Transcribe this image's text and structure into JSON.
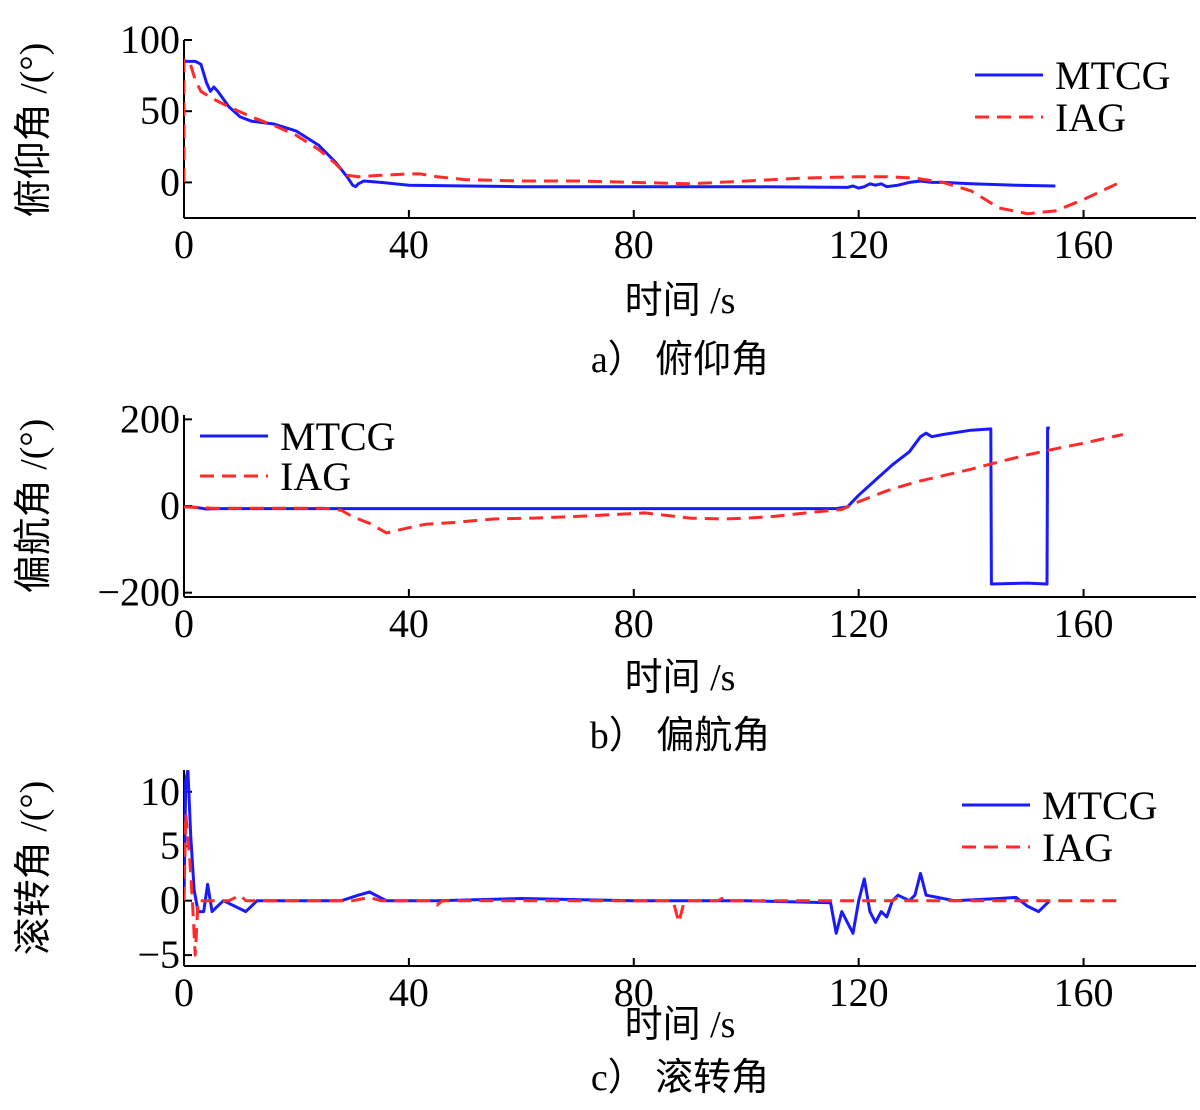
{
  "chart_data": [
    {
      "id": "a",
      "type": "line",
      "caption": "a） 俯仰角",
      "xlabel": "时间 /s",
      "ylabel": "俯仰角 /(°)",
      "xlim": [
        0,
        180
      ],
      "ylim": [
        -25,
        100
      ],
      "xticks": [
        0,
        40,
        80,
        120,
        160
      ],
      "yticks": [
        0,
        50,
        100
      ],
      "legend_position": "top-right",
      "series": [
        {
          "name": "MTCG",
          "color": "#1a1aff",
          "style": "solid",
          "points": [
            [
              0,
              85
            ],
            [
              2,
              85
            ],
            [
              3,
              83
            ],
            [
              4,
              70
            ],
            [
              4.7,
              64
            ],
            [
              5.3,
              67
            ],
            [
              6,
              64
            ],
            [
              8,
              53
            ],
            [
              10,
              46
            ],
            [
              12,
              43
            ],
            [
              16,
              41
            ],
            [
              20,
              36
            ],
            [
              24,
              26
            ],
            [
              27,
              14
            ],
            [
              29,
              4
            ],
            [
              30,
              -2
            ],
            [
              30.5,
              -3
            ],
            [
              31,
              -1
            ],
            [
              32,
              1
            ],
            [
              35,
              0
            ],
            [
              40,
              -2
            ],
            [
              60,
              -3
            ],
            [
              90,
              -3
            ],
            [
              100,
              -3
            ],
            [
              118,
              -3.5
            ],
            [
              119,
              -2.5
            ],
            [
              120,
              -4
            ],
            [
              121,
              -3
            ],
            [
              122,
              -1
            ],
            [
              123,
              -2
            ],
            [
              124,
              -1
            ],
            [
              125,
              -3
            ],
            [
              127,
              -2
            ],
            [
              129,
              0
            ],
            [
              131,
              1
            ],
            [
              133,
              0
            ],
            [
              135,
              0
            ],
            [
              140,
              -1
            ],
            [
              148,
              -2
            ],
            [
              155,
              -2.5
            ]
          ]
        },
        {
          "name": "IAG",
          "color": "#ff2a2a",
          "style": "dashed",
          "points": [
            [
              0,
              0
            ],
            [
              0,
              86
            ],
            [
              1,
              85
            ],
            [
              2,
              72
            ],
            [
              3,
              64
            ],
            [
              5,
              59
            ],
            [
              8,
              53
            ],
            [
              12,
              46
            ],
            [
              16,
              40
            ],
            [
              20,
              33
            ],
            [
              24,
              23
            ],
            [
              27,
              13
            ],
            [
              29,
              5
            ],
            [
              31,
              4
            ],
            [
              35,
              5
            ],
            [
              40,
              6
            ],
            [
              42,
              6
            ],
            [
              45,
              4
            ],
            [
              50,
              2
            ],
            [
              60,
              1
            ],
            [
              70,
              1
            ],
            [
              80,
              0
            ],
            [
              90,
              -1
            ],
            [
              100,
              1
            ],
            [
              110,
              3
            ],
            [
              120,
              4
            ],
            [
              125,
              4
            ],
            [
              130,
              3
            ],
            [
              135,
              0
            ],
            [
              140,
              -6
            ],
            [
              145,
              -18
            ],
            [
              150,
              -22
            ],
            [
              155,
              -20
            ],
            [
              160,
              -12
            ],
            [
              167,
              1
            ]
          ]
        }
      ]
    },
    {
      "id": "b",
      "type": "line",
      "caption": "b） 偏航角",
      "xlabel": "时间 /s",
      "ylabel": "偏航角 /(°)",
      "xlim": [
        0,
        180
      ],
      "ylim": [
        -210,
        210
      ],
      "xticks": [
        0,
        40,
        80,
        120,
        160
      ],
      "yticks": [
        -200,
        0,
        200
      ],
      "legend_position": "top-left",
      "series": [
        {
          "name": "MTCG",
          "color": "#1a1aff",
          "style": "solid",
          "points": [
            [
              0,
              -2
            ],
            [
              2,
              -3
            ],
            [
              4,
              -7
            ],
            [
              6,
              -6
            ],
            [
              10,
              -6
            ],
            [
              20,
              -6
            ],
            [
              40,
              -6
            ],
            [
              60,
              -6
            ],
            [
              80,
              -6
            ],
            [
              100,
              -6
            ],
            [
              110,
              -6
            ],
            [
              116,
              -6
            ],
            [
              118,
              -2
            ],
            [
              120,
              25
            ],
            [
              123,
              60
            ],
            [
              126,
              95
            ],
            [
              129,
              125
            ],
            [
              131,
              160
            ],
            [
              132,
              168
            ],
            [
              133,
              160
            ],
            [
              135,
              165
            ],
            [
              140,
              175
            ],
            [
              143.5,
              178
            ],
            [
              143.6,
              -180
            ],
            [
              150,
              -178
            ],
            [
              153.5,
              -180
            ],
            [
              153.6,
              180
            ],
            [
              154,
              180
            ]
          ]
        },
        {
          "name": "IAG",
          "color": "#ff2a2a",
          "style": "dashed",
          "points": [
            [
              0,
              -2
            ],
            [
              5,
              -5
            ],
            [
              10,
              -5
            ],
            [
              20,
              -5
            ],
            [
              25,
              -5
            ],
            [
              28,
              -10
            ],
            [
              30,
              -25
            ],
            [
              33,
              -40
            ],
            [
              36,
              -62
            ],
            [
              40,
              -50
            ],
            [
              43,
              -42
            ],
            [
              48,
              -38
            ],
            [
              55,
              -30
            ],
            [
              62,
              -28
            ],
            [
              70,
              -24
            ],
            [
              76,
              -20
            ],
            [
              82,
              -16
            ],
            [
              86,
              -22
            ],
            [
              90,
              -28
            ],
            [
              96,
              -30
            ],
            [
              100,
              -28
            ],
            [
              105,
              -24
            ],
            [
              112,
              -14
            ],
            [
              117,
              -8
            ],
            [
              120,
              10
            ],
            [
              125,
              35
            ],
            [
              130,
              55
            ],
            [
              135,
              70
            ],
            [
              140,
              85
            ],
            [
              145,
              102
            ],
            [
              150,
              118
            ],
            [
              155,
              132
            ],
            [
              160,
              145
            ],
            [
              167,
              165
            ]
          ]
        }
      ]
    },
    {
      "id": "c",
      "type": "line",
      "caption": "c） 滚转角",
      "xlabel": "时间 /s",
      "ylabel": "滚转角 /(°)",
      "xlim": [
        0,
        180
      ],
      "ylim": [
        -6,
        12
      ],
      "xticks": [
        0,
        40,
        80,
        120,
        160
      ],
      "yticks": [
        -5,
        0,
        5,
        10
      ],
      "legend_position": "top-right",
      "series": [
        {
          "name": "MTCG",
          "color": "#1a1aff",
          "style": "solid",
          "points": [
            [
              0,
              0
            ],
            [
              0.3,
              11
            ],
            [
              0.7,
              12
            ],
            [
              1.2,
              6
            ],
            [
              1.8,
              1
            ],
            [
              2.5,
              -1
            ],
            [
              3.5,
              -1
            ],
            [
              4.2,
              1.5
            ],
            [
              5,
              -1
            ],
            [
              6,
              -0.5
            ],
            [
              7,
              0
            ],
            [
              9,
              -0.5
            ],
            [
              11,
              -1
            ],
            [
              13,
              0
            ],
            [
              20,
              0
            ],
            [
              28,
              0
            ],
            [
              31,
              0.5
            ],
            [
              33,
              0.8
            ],
            [
              36,
              0
            ],
            [
              45,
              0
            ],
            [
              60,
              0.2
            ],
            [
              80,
              0
            ],
            [
              100,
              0
            ],
            [
              115,
              -0.2
            ],
            [
              116,
              -3
            ],
            [
              117,
              -1
            ],
            [
              118,
              -2
            ],
            [
              119,
              -3
            ],
            [
              120,
              0
            ],
            [
              121,
              2
            ],
            [
              122,
              -1
            ],
            [
              123,
              -2
            ],
            [
              124,
              -1
            ],
            [
              125,
              -1.5
            ],
            [
              126,
              0
            ],
            [
              127,
              0.5
            ],
            [
              129,
              0
            ],
            [
              130,
              0.5
            ],
            [
              131,
              2.5
            ],
            [
              132,
              0.5
            ],
            [
              134,
              0.3
            ],
            [
              137,
              0
            ],
            [
              145,
              0.2
            ],
            [
              148,
              0.3
            ],
            [
              150,
              -0.5
            ],
            [
              152,
              -1
            ],
            [
              153,
              -0.5
            ],
            [
              154,
              0
            ]
          ]
        },
        {
          "name": "IAG",
          "color": "#ff2a2a",
          "style": "dashed",
          "points": [
            [
              0,
              0
            ],
            [
              0.3,
              8
            ],
            [
              1,
              4
            ],
            [
              1.5,
              0
            ],
            [
              2,
              -5
            ],
            [
              2.5,
              0
            ],
            [
              5,
              0
            ],
            [
              8,
              0
            ],
            [
              10,
              0.5
            ],
            [
              11,
              0
            ],
            [
              20,
              0
            ],
            [
              30,
              0
            ],
            [
              33,
              0.3
            ],
            [
              35,
              0
            ],
            [
              40,
              0
            ],
            [
              44,
              0
            ],
            [
              45,
              -0.4
            ],
            [
              46,
              0
            ],
            [
              60,
              0
            ],
            [
              80,
              0
            ],
            [
              87,
              0
            ],
            [
              88,
              -2
            ],
            [
              89,
              0
            ],
            [
              95,
              0
            ],
            [
              96,
              0.3
            ],
            [
              97,
              0
            ],
            [
              115,
              0
            ],
            [
              120,
              0
            ],
            [
              126,
              0
            ],
            [
              127,
              0.3
            ],
            [
              128,
              0
            ],
            [
              140,
              0
            ],
            [
              150,
              0
            ],
            [
              167,
              0
            ]
          ]
        }
      ]
    }
  ]
}
